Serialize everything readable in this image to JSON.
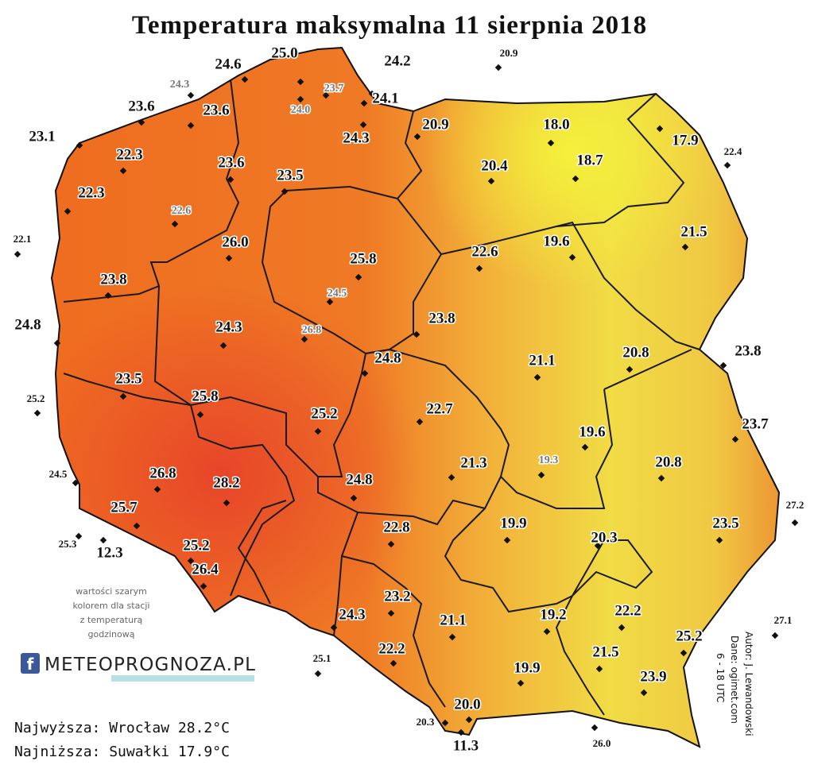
{
  "header": {
    "title": "Temperatura maksymalna 11 sierpnia 2018"
  },
  "stations": [
    "24.6",
    "25.0",
    "24.2",
    "24.1",
    "23.6",
    "23.6",
    "24.3",
    "23.1",
    "20.9",
    "18.0",
    "17.9",
    "22.3",
    "23.6",
    "23.5",
    "20.4",
    "18.7",
    "22.3",
    "26.0",
    "19.6",
    "22.6",
    "21.5",
    "25.8",
    "23.8",
    "24.8",
    "24.3",
    "23.8",
    "24.8",
    "21.1",
    "20.8",
    "23.8",
    "23.5",
    "25.8",
    "25.2",
    "22.7",
    "19.6",
    "23.7",
    "21.3",
    "20.8",
    "26.8",
    "28.2",
    "24.8",
    "25.7",
    "22.8",
    "19.9",
    "20.3",
    "23.5",
    "12.3",
    "25.2",
    "26.4",
    "24.3",
    "23.2",
    "21.1",
    "19.2",
    "22.2",
    "22.2",
    "21.5",
    "25.2",
    "19.9",
    "23.9",
    "20.0",
    "11.3"
  ],
  "outside_stations": [
    "20.9",
    "22.4",
    "22.1",
    "25.2",
    "24.5",
    "27.2",
    "25.3",
    "27.1",
    "25.1",
    "20.3",
    "26.0"
  ],
  "hourly_stations": [
    "24.3",
    "23.7",
    "24.0",
    "22.6",
    "24.5",
    "26.8",
    "19.3"
  ],
  "note": [
    "wartości szarym",
    "kolorem dla stacji",
    "z temperaturą",
    "godzinową"
  ],
  "logo": {
    "icon": "f",
    "text": "METEOPROGNOZA.PL"
  },
  "summary": [
    "Najwyższa: Wrocław 28.2°C",
    "Najniższa: Suwałki 17.9°C"
  ],
  "credits": [
    "Autor: J. Lewandowski",
    "Dane: ogimet.com",
    "6 - 18 UTC"
  ]
}
